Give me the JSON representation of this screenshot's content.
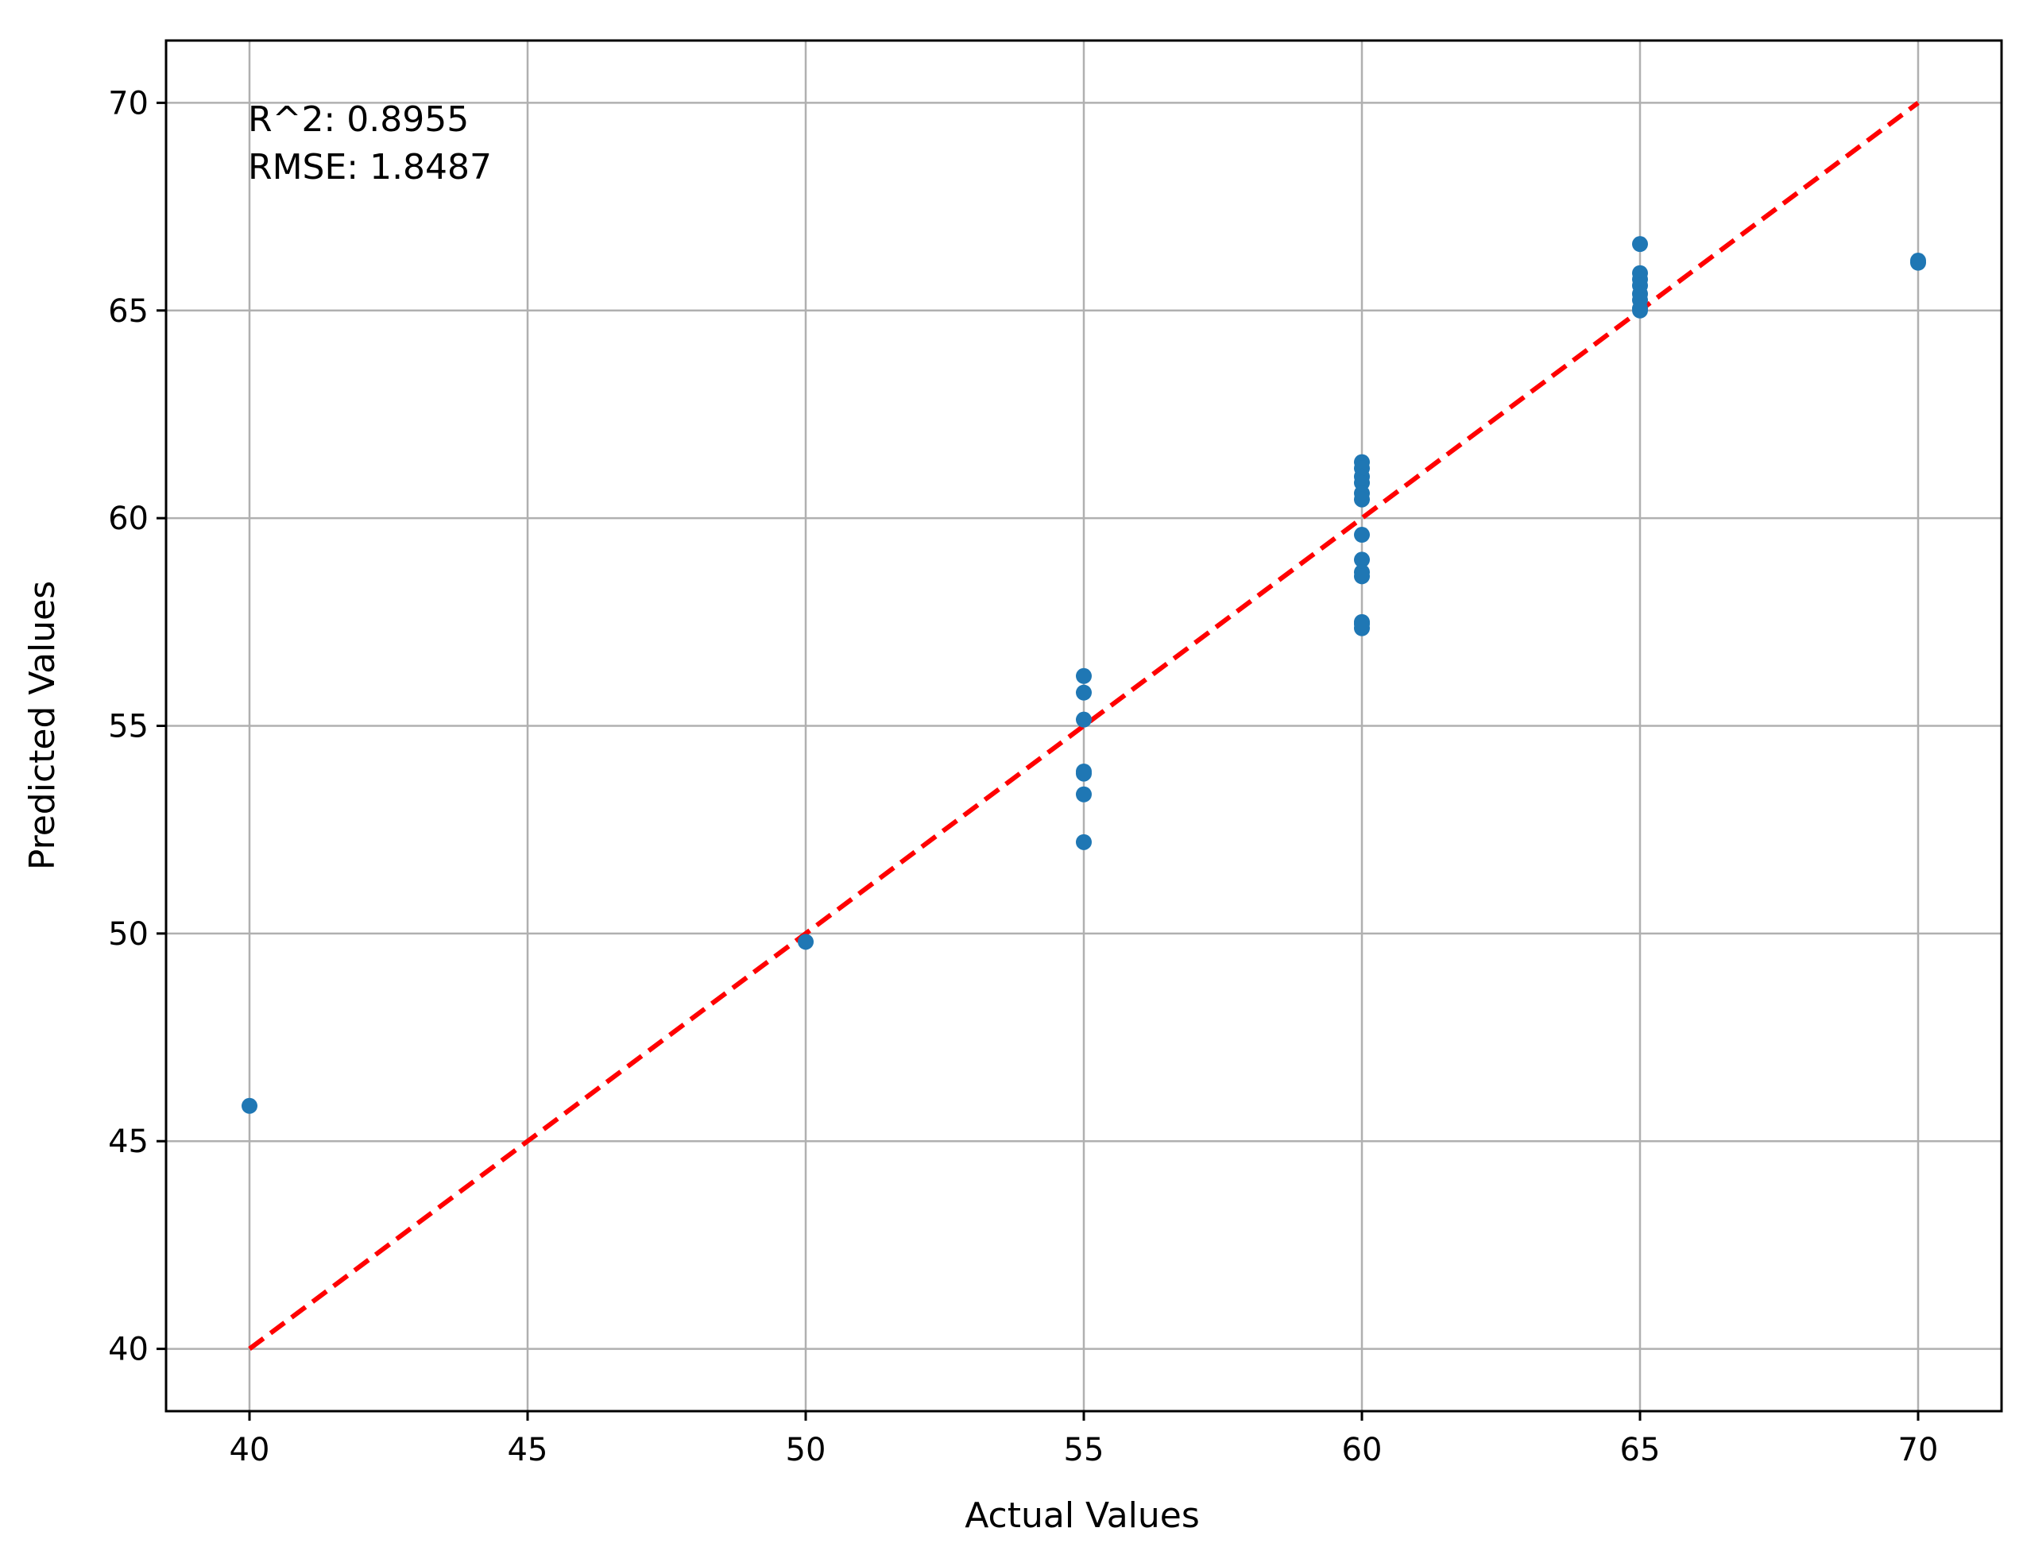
{
  "chart_data": {
    "type": "scatter",
    "xlabel": "Actual Values",
    "ylabel": "Predicted Values",
    "xlim": [
      38.5,
      71.5
    ],
    "ylim": [
      38.5,
      71.5
    ],
    "xticks": [
      40,
      45,
      50,
      55,
      60,
      65,
      70
    ],
    "yticks": [
      40,
      45,
      50,
      55,
      60,
      65,
      70
    ],
    "grid": true,
    "annotations": [
      "R^2: 0.8955",
      "RMSE: 1.8487"
    ],
    "reference_line": {
      "x": [
        40,
        70
      ],
      "y": [
        40,
        70
      ],
      "color": "#ff0000",
      "style": "dashed"
    },
    "point_color": "#1f77b4",
    "series": [
      {
        "x": [
          40,
          50,
          55,
          55,
          55,
          55,
          55,
          55,
          55,
          60,
          60,
          60,
          60,
          60,
          60,
          60,
          60,
          60,
          60,
          60,
          60,
          60,
          65,
          65,
          65,
          65,
          65,
          65,
          65,
          65,
          70,
          70
        ],
        "y": [
          45.85,
          49.8,
          56.2,
          55.8,
          55.15,
          53.9,
          53.85,
          53.35,
          52.2,
          61.35,
          61.2,
          61.0,
          60.85,
          60.6,
          60.45,
          59.6,
          59.0,
          58.7,
          58.6,
          57.5,
          57.35,
          57.45,
          66.6,
          65.9,
          65.75,
          65.6,
          65.4,
          65.25,
          65.05,
          65.0,
          66.15,
          66.2
        ]
      }
    ]
  }
}
